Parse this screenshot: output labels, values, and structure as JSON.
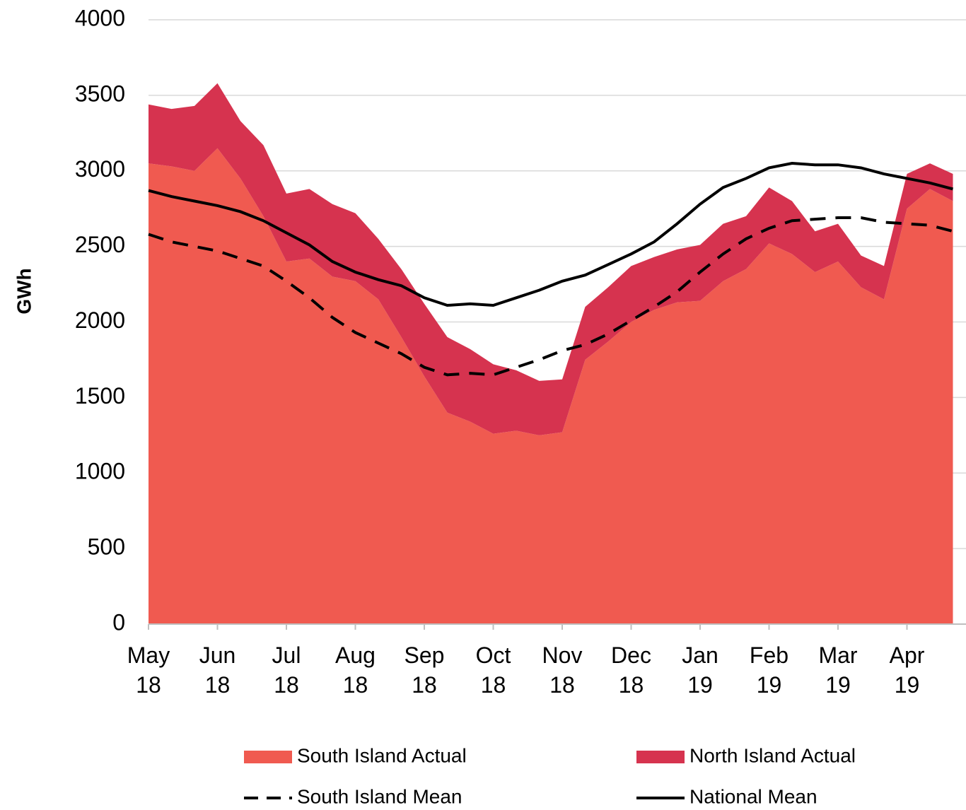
{
  "chart_data": {
    "type": "area",
    "stacked": true,
    "y_label": "GWh",
    "categories": [
      "May 18",
      null,
      null,
      "Jun 18",
      null,
      null,
      "Jul 18",
      null,
      null,
      "Aug 18",
      null,
      null,
      "Sep 18",
      null,
      null,
      "Oct 18",
      null,
      null,
      "Nov 18",
      null,
      null,
      "Dec 18",
      null,
      null,
      "Jan 19",
      null,
      null,
      "Feb 19",
      null,
      null,
      "Mar 19",
      null,
      null,
      "Apr 19",
      null,
      null
    ],
    "series": [
      {
        "name": "South Island Actual",
        "type": "area",
        "color": "#f05a50",
        "values": [
          3050,
          3030,
          3000,
          3150,
          2950,
          2700,
          2400,
          2420,
          2300,
          2270,
          2150,
          1900,
          1640,
          1400,
          1340,
          1260,
          1280,
          1250,
          1270,
          1750,
          1870,
          2000,
          2080,
          2130,
          2140,
          2270,
          2350,
          2520,
          2450,
          2330,
          2400,
          2230,
          2150,
          2750,
          2880,
          2800
        ]
      },
      {
        "name": "North Island Actual",
        "type": "area",
        "color": "#d6334f",
        "values": [
          390,
          380,
          430,
          430,
          380,
          470,
          450,
          460,
          480,
          450,
          400,
          450,
          480,
          500,
          480,
          460,
          400,
          360,
          350,
          350,
          360,
          370,
          350,
          350,
          370,
          380,
          350,
          370,
          350,
          270,
          250,
          210,
          220,
          230,
          170,
          180
        ]
      },
      {
        "name": "South Island Mean",
        "type": "line",
        "dash": "dashed",
        "color": "#000000",
        "values": [
          2580,
          2530,
          2500,
          2470,
          2420,
          2370,
          2270,
          2160,
          2030,
          1930,
          1860,
          1790,
          1700,
          1650,
          1660,
          1650,
          1700,
          1750,
          1810,
          1850,
          1920,
          2010,
          2100,
          2200,
          2330,
          2450,
          2550,
          2620,
          2670,
          2680,
          2690,
          2690,
          2660,
          2650,
          2640,
          2600
        ]
      },
      {
        "name": "National Mean",
        "type": "line",
        "dash": "solid",
        "color": "#000000",
        "values": [
          2870,
          2830,
          2800,
          2770,
          2730,
          2670,
          2590,
          2510,
          2400,
          2330,
          2280,
          2240,
          2160,
          2110,
          2120,
          2110,
          2160,
          2210,
          2270,
          2310,
          2380,
          2450,
          2530,
          2650,
          2780,
          2890,
          2950,
          3020,
          3050,
          3040,
          3040,
          3020,
          2980,
          2950,
          2920,
          2880
        ]
      }
    ],
    "ylim": [
      0,
      4000
    ],
    "yticks": [
      0,
      500,
      1000,
      1500,
      2000,
      2500,
      3000,
      3500,
      4000
    ],
    "grid": true
  }
}
